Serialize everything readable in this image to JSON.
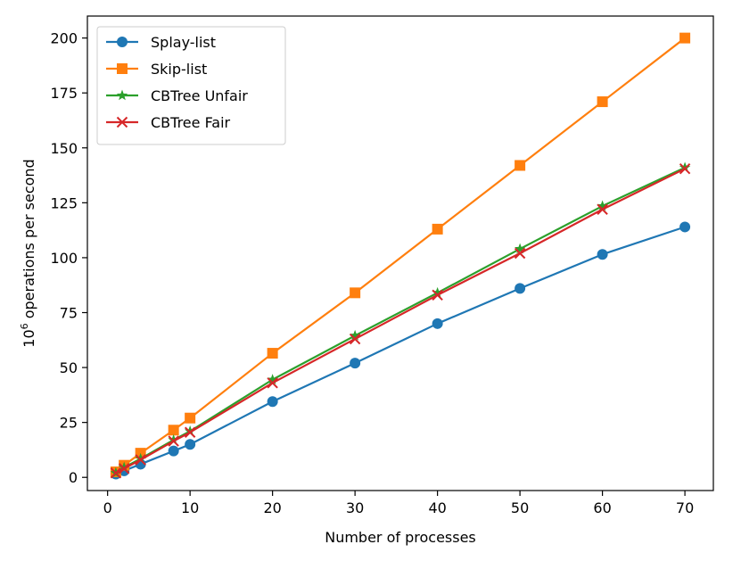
{
  "chart_data": {
    "type": "line",
    "title": "",
    "xlabel": "Number of processes",
    "ylabel_base": "10",
    "ylabel_exp": "6",
    "ylabel_rest": " operations per second",
    "xlim": [
      -2.45,
      73.45
    ],
    "ylim": [
      -6,
      210
    ],
    "xticks": [
      0,
      10,
      20,
      30,
      40,
      50,
      60,
      70
    ],
    "xtick_labels": [
      "0",
      "10",
      "20",
      "30",
      "40",
      "50",
      "60",
      "70"
    ],
    "yticks": [
      0,
      25,
      50,
      75,
      100,
      125,
      150,
      175,
      200
    ],
    "ytick_labels": [
      "0",
      "25",
      "50",
      "75",
      "100",
      "125",
      "150",
      "175",
      "200"
    ],
    "grid": false,
    "legend_position": "top-left",
    "x": [
      1,
      2,
      4,
      8,
      10,
      20,
      30,
      40,
      50,
      60,
      70
    ],
    "series": [
      {
        "name": "Splay-list",
        "color": "#1f77b4",
        "marker": "circle",
        "values": [
          1.5,
          3,
          6,
          12,
          15,
          34.5,
          52,
          70,
          86,
          101.5,
          114
        ]
      },
      {
        "name": "Skip-list",
        "color": "#ff7f0e",
        "marker": "square",
        "values": [
          2.5,
          5.5,
          11,
          21.5,
          27,
          56.5,
          84,
          113,
          142,
          171,
          200
        ]
      },
      {
        "name": "CBTree Unfair",
        "color": "#2ca02c",
        "marker": "star",
        "values": [
          2,
          4.5,
          8.5,
          17,
          21,
          44.5,
          64.5,
          84,
          104,
          123.5,
          141
        ]
      },
      {
        "name": "CBTree Fair",
        "color": "#d62728",
        "marker": "x",
        "values": [
          2,
          4,
          8,
          16.5,
          20.5,
          43,
          63,
          83,
          102,
          122,
          140.5
        ]
      }
    ]
  }
}
